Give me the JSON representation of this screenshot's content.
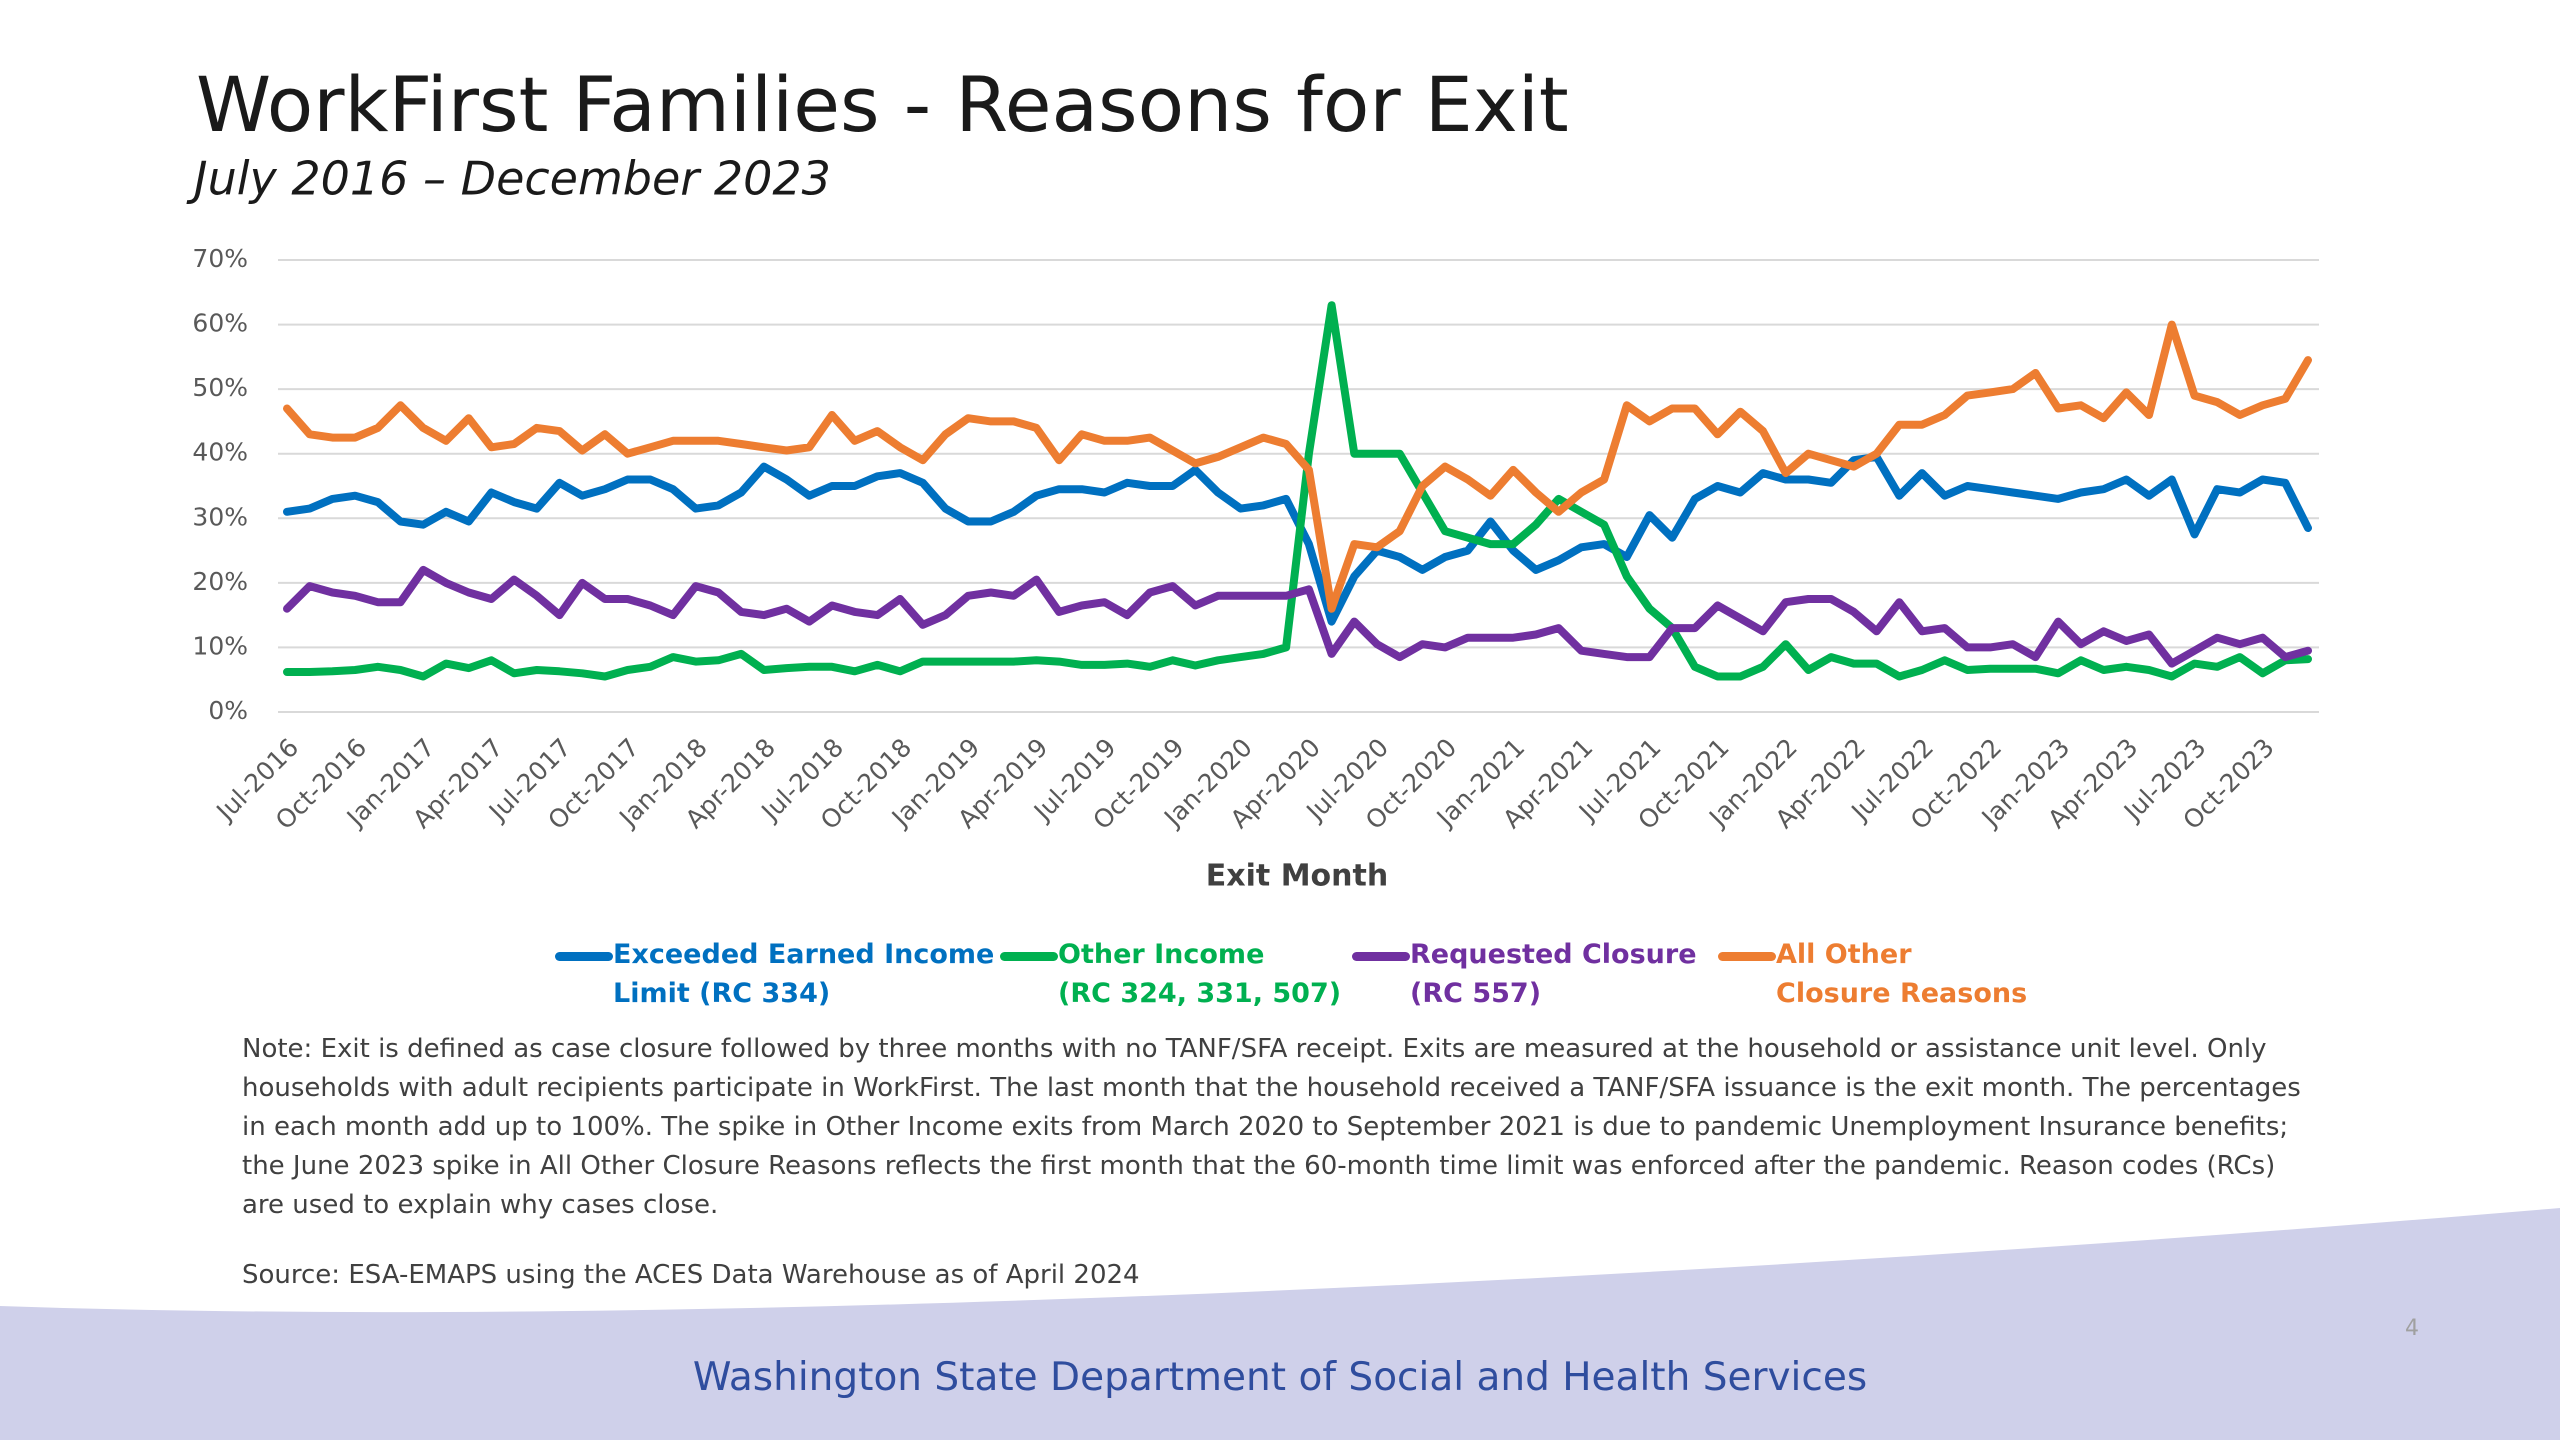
{
  "chart_data": {
    "type": "line",
    "title": "WorkFirst Families - Reasons for Exit",
    "subtitle": "July 2016 – December 2023",
    "x_label": "Exit Month",
    "categories": [
      "Jul-2016",
      null,
      null,
      "Oct-2016",
      null,
      null,
      "Jan-2017",
      null,
      null,
      "Apr-2017",
      null,
      null,
      "Jul-2017",
      null,
      null,
      "Oct-2017",
      null,
      null,
      "Jan-2018",
      null,
      null,
      "Apr-2018",
      null,
      null,
      "Jul-2018",
      null,
      null,
      "Oct-2018",
      null,
      null,
      "Jan-2019",
      null,
      null,
      "Apr-2019",
      null,
      null,
      "Jul-2019",
      null,
      null,
      "Oct-2019",
      null,
      null,
      "Jan-2020",
      null,
      null,
      "Apr-2020",
      null,
      null,
      "Jul-2020",
      null,
      null,
      "Oct-2020",
      null,
      null,
      "Jan-2021",
      null,
      null,
      "Apr-2021",
      null,
      null,
      "Jul-2021",
      null,
      null,
      "Oct-2021",
      null,
      null,
      "Jan-2022",
      null,
      null,
      "Apr-2022",
      null,
      null,
      "Jul-2022",
      null,
      null,
      "Oct-2022",
      null,
      null,
      "Jan-2023",
      null,
      null,
      "Apr-2023",
      null,
      null,
      "Jul-2023",
      null,
      null,
      "Oct-2023",
      null,
      null
    ],
    "series": [
      {
        "name": "Exceeded Earned Income\nLimit (RC 334)",
        "color": "#0070c0",
        "values": [
          31,
          31.5,
          33,
          33.5,
          32.5,
          29.5,
          29,
          31,
          29.5,
          34,
          32.5,
          31.5,
          35.5,
          33.5,
          34.5,
          36,
          36,
          34.5,
          31.5,
          32,
          34,
          38,
          36,
          33.5,
          35,
          35,
          36.5,
          37,
          35.5,
          31.5,
          29.5,
          29.5,
          31,
          33.5,
          34.5,
          34.5,
          34,
          35.5,
          35,
          35,
          37.5,
          34,
          31.5,
          32,
          33,
          26,
          14,
          21,
          25,
          24,
          22,
          24,
          25,
          29.5,
          25,
          22,
          23.5,
          25.5,
          26,
          24,
          30.5,
          27,
          33,
          35,
          34,
          37,
          36,
          36,
          35.5,
          39,
          39.5,
          33.5,
          37,
          33.5,
          35,
          34.5,
          34,
          33.5,
          33,
          34,
          34.5,
          36,
          33.5,
          36,
          27.5,
          34.5,
          34,
          36,
          35.5,
          28.5
        ]
      },
      {
        "name": "Other Income\n(RC 324, 331, 507)",
        "color": "#00b050",
        "values": [
          6.2,
          6.2,
          6.3,
          6.5,
          7,
          6.5,
          5.5,
          7.5,
          6.8,
          8,
          6,
          6.5,
          6.3,
          6,
          5.5,
          6.5,
          7,
          8.5,
          7.8,
          8,
          9,
          6.5,
          6.8,
          7,
          7,
          6.3,
          7.3,
          6.3,
          7.8,
          7.8,
          7.8,
          7.8,
          7.8,
          8,
          7.8,
          7.3,
          7.3,
          7.5,
          7,
          8,
          7.2,
          8,
          8.5,
          9,
          10,
          40,
          63,
          40,
          40,
          40,
          34,
          28,
          27,
          26,
          26,
          29,
          33,
          31,
          29,
          21,
          16,
          13,
          7,
          5.5,
          5.5,
          7,
          10.5,
          6.5,
          8.5,
          7.5,
          7.5,
          5.5,
          6.5,
          8,
          6.5,
          6.7,
          6.7,
          6.7,
          6,
          8,
          6.5,
          7,
          6.5,
          5.5,
          7.5,
          7,
          8.5,
          6,
          8,
          8.2
        ]
      },
      {
        "name": "Requested Closure\n(RC 557)",
        "color": "#7030a0",
        "values": [
          16,
          19.5,
          18.5,
          18,
          17,
          17,
          22,
          20,
          18.5,
          17.5,
          20.5,
          18,
          15,
          20,
          17.5,
          17.5,
          16.5,
          15,
          19.5,
          18.5,
          15.5,
          15,
          16,
          14,
          16.5,
          15.5,
          15,
          17.5,
          13.5,
          15,
          18,
          18.5,
          18,
          20.5,
          15.5,
          16.5,
          17,
          15,
          18.5,
          19.5,
          16.5,
          18,
          18,
          18,
          18,
          19,
          9,
          14,
          10.5,
          8.5,
          10.5,
          10,
          11.5,
          11.5,
          11.5,
          12,
          13,
          9.5,
          9,
          8.5,
          8.5,
          13,
          13,
          16.5,
          14.5,
          12.5,
          17,
          17.5,
          17.5,
          15.5,
          12.5,
          17,
          12.5,
          13,
          10,
          10,
          10.5,
          8.5,
          14,
          10.5,
          12.5,
          11,
          12,
          7.5,
          9.5,
          11.5,
          10.5,
          11.5,
          8.5,
          9.5
        ]
      },
      {
        "name": "All Other\nClosure Reasons",
        "color": "#ed7d31",
        "values": [
          47,
          43,
          42.5,
          42.5,
          44,
          47.5,
          44,
          42,
          45.5,
          41,
          41.5,
          44,
          43.5,
          40.5,
          43,
          40,
          41,
          42,
          42,
          42,
          41.5,
          41,
          40.5,
          41,
          46,
          42,
          43.5,
          41,
          39,
          43,
          45.5,
          45,
          45,
          44,
          39,
          43,
          42,
          42,
          42.5,
          40.5,
          38.5,
          39.5,
          41,
          42.5,
          41.5,
          37.5,
          16,
          26,
          25.5,
          28,
          35,
          38,
          36,
          33.5,
          37.5,
          34,
          31,
          34,
          36,
          47.5,
          45,
          47,
          47,
          43,
          46.5,
          43.5,
          37,
          40,
          39,
          38,
          40,
          44.5,
          44.5,
          46,
          49,
          49.5,
          50,
          52.5,
          47,
          47.5,
          45.5,
          49.5,
          46,
          60,
          49,
          48,
          46,
          47.5,
          48.5,
          54.5
        ]
      }
    ],
    "ylim": [
      0,
      70
    ],
    "yticks": [
      {
        "value": 0,
        "label": "0%"
      },
      {
        "value": 10,
        "label": "10%"
      },
      {
        "value": 20,
        "label": "20%"
      },
      {
        "value": 30,
        "label": "30%"
      },
      {
        "value": 40,
        "label": "40%"
      },
      {
        "value": 50,
        "label": "50%"
      },
      {
        "value": 60,
        "label": "60%"
      },
      {
        "value": 70,
        "label": "70%"
      }
    ],
    "grid": true,
    "legend": "bottom"
  },
  "note": "Note: Exit is defined as case closure followed by three months with no TANF/SFA receipt. Exits are measured at the household or assistance unit level. Only households with adult recipients participate in WorkFirst. The last month that the household received a TANF/SFA issuance is the exit month. The percentages in each month add up to 100%. The spike in Other Income exits from March 2020 to September 2021 is due to pandemic Unemployment Insurance benefits; the June 2023 spike in All Other Closure Reasons reflects the first month that the 60-month time limit was enforced after the pandemic. Reason codes (RCs) are used to explain why cases close.",
  "source": "Source: ESA-EMAPS using the ACES Data Warehouse as of April 2024",
  "footer": "Washington State Department of Social and Health Services",
  "page_number": "4"
}
